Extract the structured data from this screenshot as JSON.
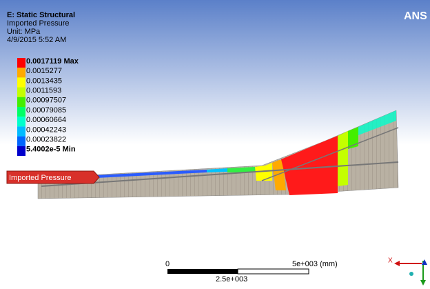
{
  "header": {
    "title": "E: Static Structural",
    "subtitle": "Imported Pressure",
    "unit": "Unit: MPa",
    "timestamp": "4/9/2015 5:52 AM"
  },
  "legend": {
    "entries": [
      {
        "label": "0.0017119 Max",
        "color": "#ff0000"
      },
      {
        "label": "0.0015277",
        "color": "#ffaa00"
      },
      {
        "label": "0.0013435",
        "color": "#ffff00"
      },
      {
        "label": "0.0011593",
        "color": "#c4ff00"
      },
      {
        "label": "0.00097507",
        "color": "#44ee00"
      },
      {
        "label": "0.00079085",
        "color": "#00ff66"
      },
      {
        "label": "0.00060664",
        "color": "#00ffcc"
      },
      {
        "label": "0.00042243",
        "color": "#00bbff"
      },
      {
        "label": "0.00023822",
        "color": "#0066ff"
      },
      {
        "label": "5.4002e-5 Min",
        "color": "#0000cc"
      }
    ]
  },
  "tag": "Imported Pressure",
  "logo": "ANS",
  "scale": {
    "start": "0",
    "end": "5e+003 (mm)",
    "middle": "2.5e+003"
  },
  "triad": {
    "x_label": "X"
  }
}
